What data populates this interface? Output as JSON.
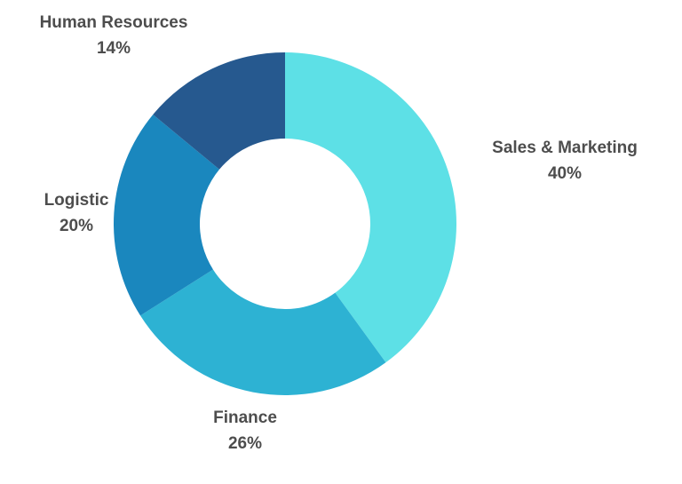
{
  "chart_data": {
    "type": "pie",
    "variant": "donut",
    "slices": [
      {
        "label": "Sales & Marketing",
        "value": 40,
        "value_label": "40%",
        "color": "#5de0e6"
      },
      {
        "label": "Finance",
        "value": 26,
        "value_label": "26%",
        "color": "#2db2d3"
      },
      {
        "label": "Logistic",
        "value": 20,
        "value_label": "20%",
        "color": "#1a87be"
      },
      {
        "label": "Human Resources",
        "value": 14,
        "value_label": "14%",
        "color": "#26598f"
      }
    ],
    "legend": "none",
    "labels_placement": "outside"
  }
}
